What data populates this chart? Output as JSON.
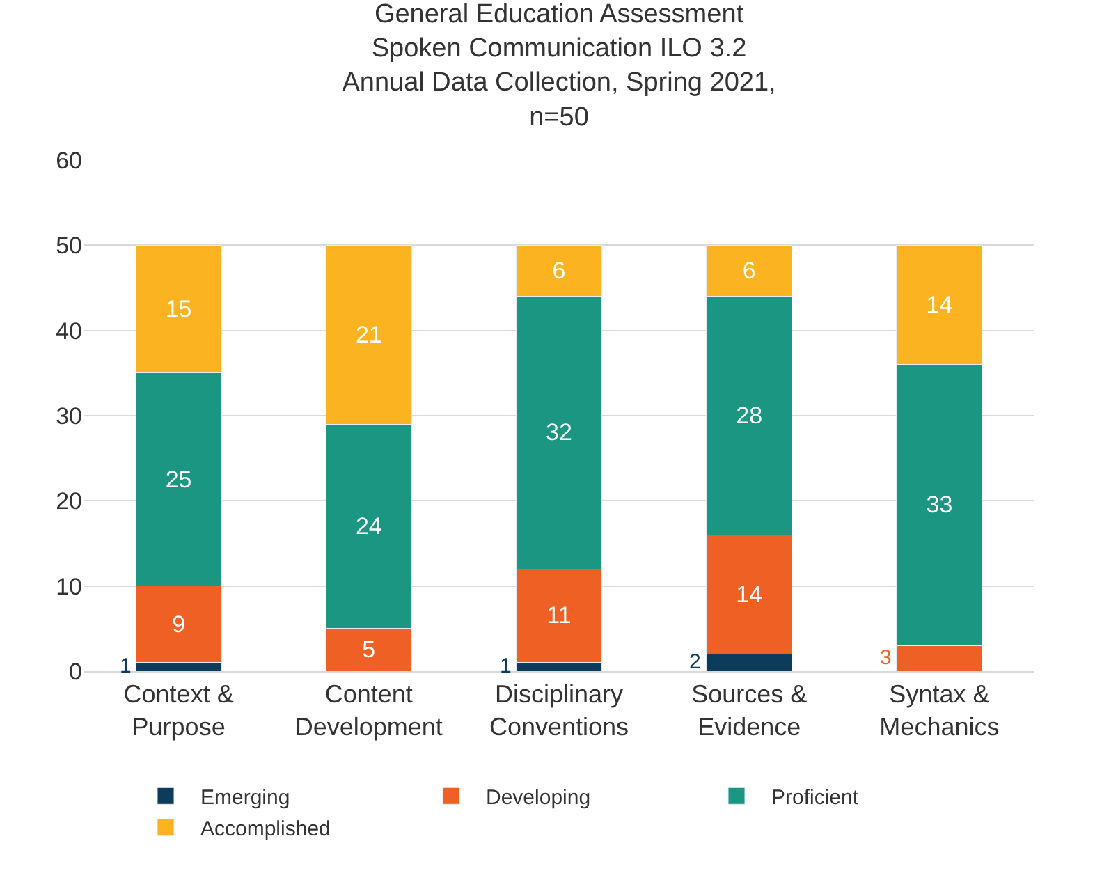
{
  "chart_data": {
    "type": "bar",
    "stacked": true,
    "title": "General Education Assessment\nSpoken Communication ILO 3.2\nAnnual Data Collection, Spring 2021,\nn=50",
    "categories": [
      "Context &\nPurpose",
      "Content\nDevelopment",
      "Disciplinary\nConventions",
      "Sources &\nEvidence",
      "Syntax &\nMechanics"
    ],
    "series": [
      {
        "name": "Emerging",
        "color": "#0d3b5c",
        "values": [
          1,
          null,
          1,
          2,
          null
        ]
      },
      {
        "name": "Developing",
        "color": "#ee6023",
        "values": [
          9,
          5,
          11,
          14,
          3
        ]
      },
      {
        "name": "Proficient",
        "color": "#1a9683",
        "values": [
          25,
          24,
          32,
          28,
          33
        ]
      },
      {
        "name": "Accomplished",
        "color": "#fbb321",
        "values": [
          15,
          21,
          6,
          6,
          14
        ]
      }
    ],
    "ylim": [
      0,
      60
    ],
    "yticks": [
      0,
      10,
      20,
      30,
      40,
      50,
      60
    ],
    "grid": "y",
    "legend": "bottom",
    "data_labels": true
  }
}
